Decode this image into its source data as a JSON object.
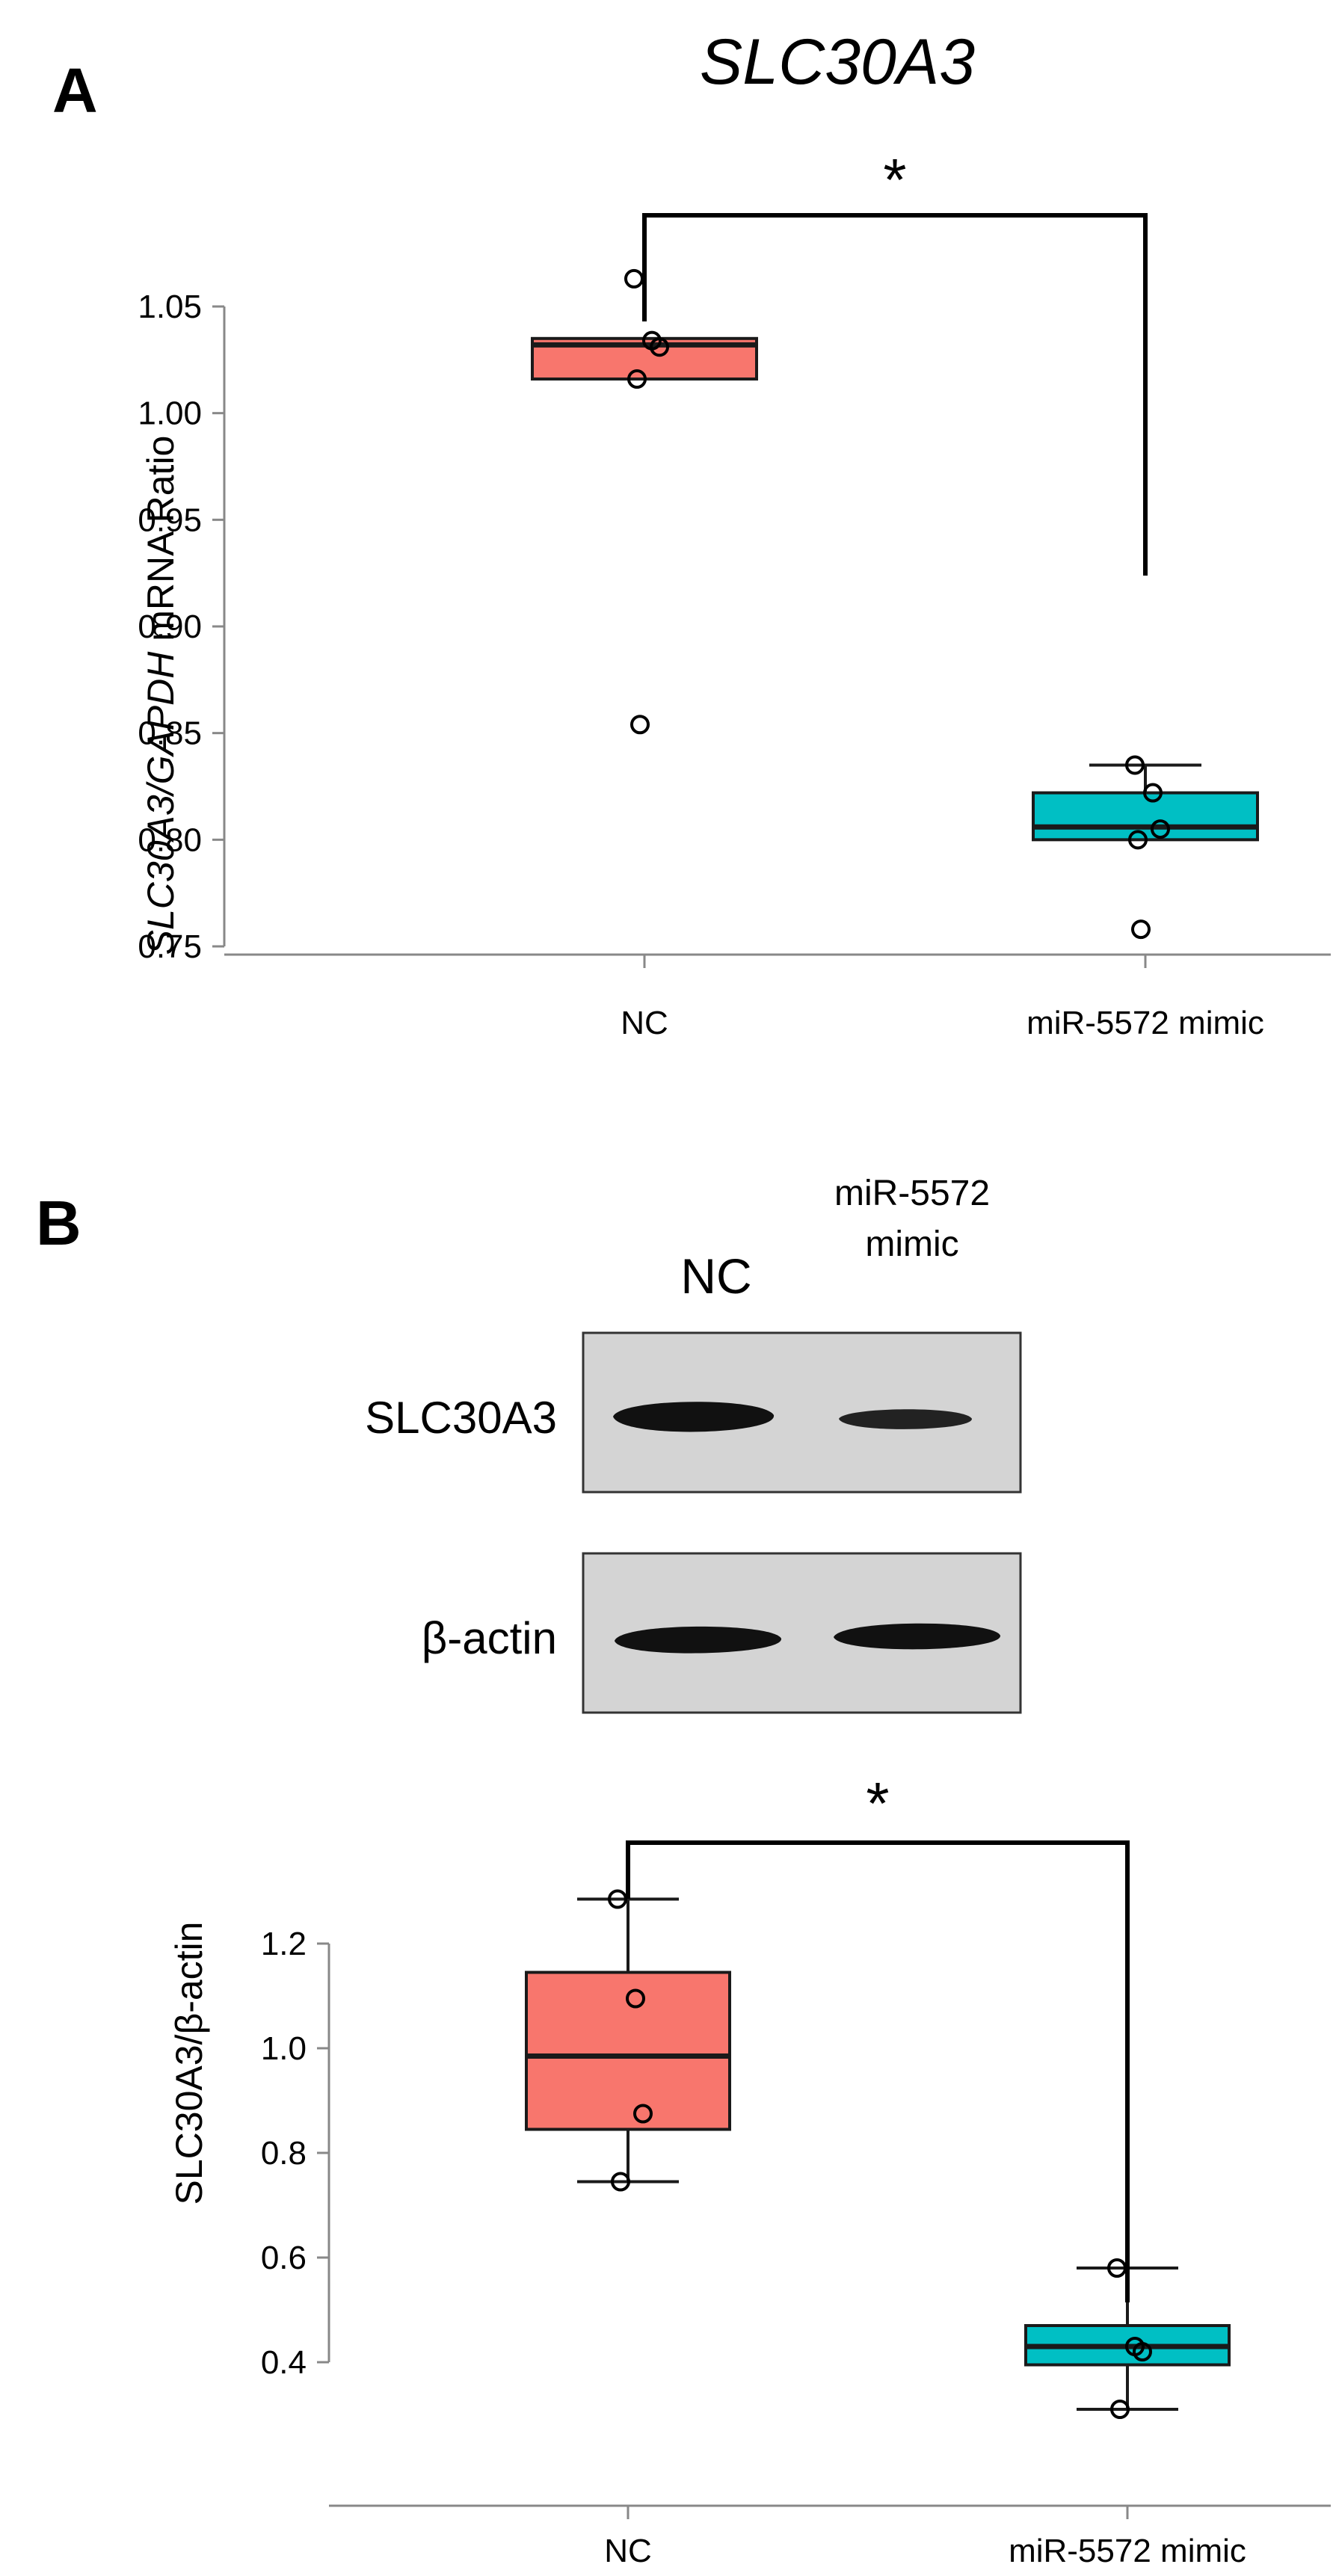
{
  "panel_a": {
    "letter": "A",
    "title": "SLC30A3",
    "ylabel_italic": "SLC30A3/GAPDH",
    "ylabel_plain": " mRNA Ratio",
    "significance": "*"
  },
  "panel_b": {
    "letter": "B",
    "blot": {
      "lane_nc": "NC",
      "lane_mimic_line1": "miR-5572",
      "lane_mimic_line2": "mimic",
      "row1_label": "SLC30A3",
      "row2_label": "β-actin"
    },
    "ylabel": "SLC30A3/β-actin",
    "significance": "*"
  },
  "colors": {
    "nc_box": "#f8766d",
    "mimic_box": "#00bfc4",
    "stroke": "#1a1a1a",
    "axis": "#888888"
  },
  "chart_data": [
    {
      "type": "box",
      "title": "SLC30A3",
      "ylabel": "SLC30A3/GAPDH mRNA Ratio",
      "categories": [
        "NC",
        "miR-5572 mimic"
      ],
      "ylim": [
        0.745,
        1.08
      ],
      "yticks": [
        0.75,
        0.8,
        0.85,
        0.9,
        0.95,
        1.0,
        1.05
      ],
      "ytick_labels": [
        "0.75",
        "0.80",
        "0.85",
        "0.90",
        "0.95",
        "1.00",
        "1.05"
      ],
      "boxes": [
        {
          "category": "NC",
          "q1": 1.016,
          "median": 1.032,
          "q3": 1.035,
          "whisker_low": 1.016,
          "whisker_high": 1.035,
          "points": [
            1.063,
            1.034,
            1.031,
            1.016,
            0.854
          ]
        },
        {
          "category": "miR-5572 mimic",
          "q1": 0.8,
          "median": 0.806,
          "q3": 0.822,
          "whisker_low": 0.8,
          "whisker_high": 0.835,
          "points": [
            0.835,
            0.822,
            0.805,
            0.8,
            0.758
          ]
        }
      ],
      "significance": "*",
      "grid": false
    },
    {
      "type": "box",
      "title": "",
      "ylabel": "SLC30A3/β-actin",
      "categories": [
        "NC",
        "miR-5572 mimic"
      ],
      "ylim": [
        0.28,
        1.3
      ],
      "yticks": [
        0.4,
        0.6,
        0.8,
        1.0,
        1.2
      ],
      "ytick_labels": [
        "0.4",
        "0.6",
        "0.8",
        "1.0",
        "1.2"
      ],
      "boxes": [
        {
          "category": "NC",
          "q1": 0.845,
          "median": 0.985,
          "q3": 1.145,
          "whisker_low": 0.745,
          "whisker_high": 1.285,
          "points": [
            1.285,
            1.095,
            0.875,
            0.745
          ]
        },
        {
          "category": "miR-5572 mimic",
          "q1": 0.395,
          "median": 0.43,
          "q3": 0.47,
          "whisker_low": 0.31,
          "whisker_high": 0.58,
          "points": [
            0.58,
            0.43,
            0.42,
            0.31
          ]
        }
      ],
      "significance": "*",
      "grid": false
    }
  ]
}
